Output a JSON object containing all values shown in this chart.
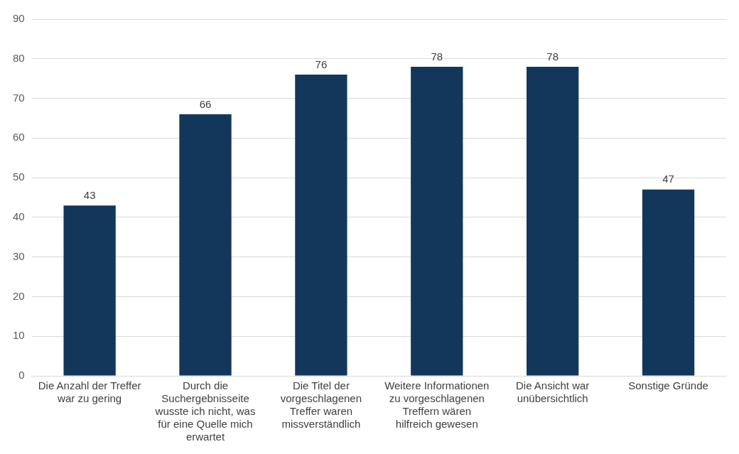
{
  "chart_data": {
    "type": "bar",
    "categories": [
      "Die Anzahl der Treffer war zu gering",
      "Durch die Suchergebnisseite wusste ich nicht, was für eine Quelle mich erwartet",
      "Die Titel der vorgeschlagenen Treffer waren missverständlich",
      "Weitere Informationen zu vorgeschlagenen Treffern wären hilfreich gewesen",
      "Die Ansicht war unübersichtlich",
      "Sonstige Gründe"
    ],
    "values": [
      43,
      66,
      76,
      78,
      78,
      47
    ],
    "color": "#12375a",
    "ylim": [
      0,
      90
    ],
    "yticks": [
      0,
      10,
      20,
      30,
      40,
      50,
      60,
      70,
      80,
      90
    ],
    "grid": "y",
    "data_labels": true
  }
}
